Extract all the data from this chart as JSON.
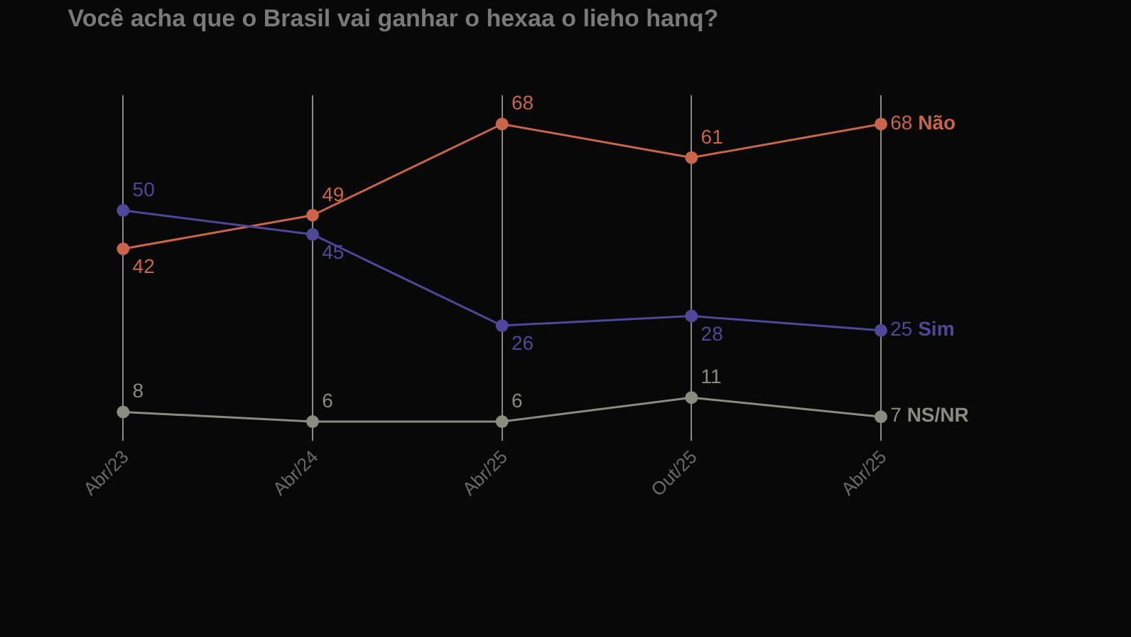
{
  "chart_data": {
    "type": "line",
    "title": "Você acha que o Brasil vai ganhar o hexaa o lieho hanq?",
    "categories": [
      "Abr/23",
      "Abr/24",
      "Abr/25",
      "Out/25",
      "Abr/25"
    ],
    "ylim": [
      2,
      74
    ],
    "tick_labels": "x",
    "series": [
      {
        "name": "Não",
        "color": "#c8654a",
        "values": [
          42,
          49,
          68,
          61,
          68
        ]
      },
      {
        "name": "Sim",
        "color": "#4f4899",
        "values": [
          50,
          45,
          26,
          28,
          25
        ]
      },
      {
        "name": "NS/NR",
        "color": "#8a8c80",
        "values": [
          8,
          6,
          6,
          11,
          7
        ]
      }
    ],
    "data_labels": true,
    "grid": "x",
    "marker": "circle",
    "line_style": "solid",
    "legend": false
  }
}
